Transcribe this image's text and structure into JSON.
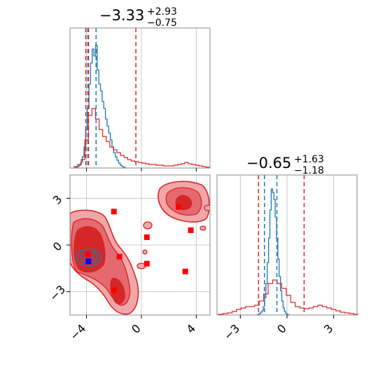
{
  "chart_data": {
    "type": "corner",
    "colors": {
      "red": "#d62728",
      "blue": "#1f77b4",
      "red_fill_light": "#f1a7aa",
      "red_fill_dark": "#d62728",
      "marker_red": "#ff0000",
      "marker_blue": "#0000ff",
      "grid": "#c8c8c8"
    },
    "panels": {
      "top_left": {
        "title": {
          "main": "−3.33",
          "sup": "+2.93",
          "sub": "−0.75"
        },
        "xlim": [
          -5.2,
          5.0
        ],
        "grid": true,
        "vlines_red": [
          -4.05,
          -3.85,
          -0.4
        ],
        "vlines_blue": [
          -3.9,
          -3.3
        ]
      },
      "bottom_right": {
        "title": {
          "main": "−0.65",
          "sup": "+1.63",
          "sub": "−1.18"
        },
        "xlim": [
          -4.5,
          4.5
        ],
        "xticks": [
          "−3",
          "0",
          "3"
        ],
        "xtick_values": [
          -3,
          0,
          3
        ],
        "grid": true,
        "vlines_red": [
          -1.83,
          1.1
        ],
        "vlines_blue": [
          -1.45,
          -0.65
        ]
      },
      "bottom_left": {
        "xlim": [
          -5.2,
          5.0
        ],
        "ylim": [
          -4.5,
          4.5
        ],
        "xticks": [
          "−4",
          "0",
          "4"
        ],
        "xtick_values": [
          -4,
          0,
          4
        ],
        "yticks": [
          "3",
          "0",
          "−3"
        ],
        "ytick_values": [
          3,
          0,
          -3
        ],
        "grid": true,
        "points_red": [
          [
            -2.0,
            2.15
          ],
          [
            2.7,
            2.45
          ],
          [
            3.6,
            0.95
          ],
          [
            -3.9,
            -0.6
          ],
          [
            -1.6,
            -0.75
          ],
          [
            0.4,
            0.5
          ],
          [
            0.4,
            -1.2
          ],
          [
            3.2,
            -1.7
          ],
          [
            -2.0,
            -2.9
          ]
        ],
        "point_blue": [
          -3.85,
          -1.05
        ]
      }
    }
  }
}
